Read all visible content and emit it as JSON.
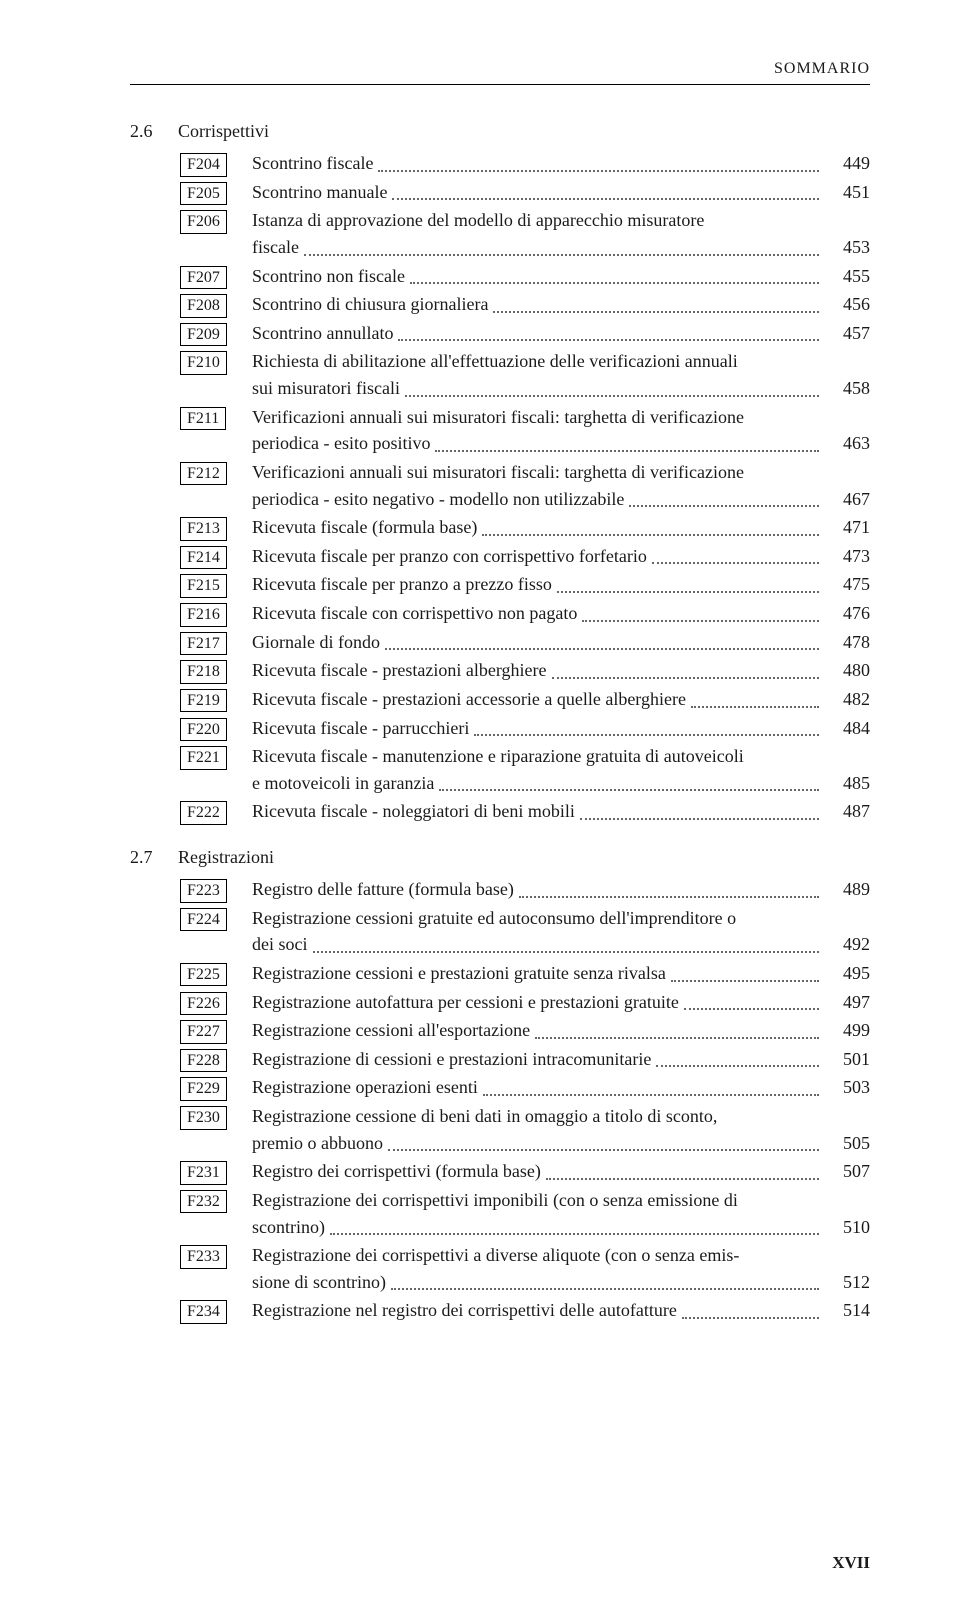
{
  "header": "SOMMARIO",
  "footer": "XVII",
  "sections": [
    {
      "num": "2.6",
      "title": "Corrispettivi",
      "entries": [
        {
          "code": "F204",
          "lines": [
            "Scontrino fiscale"
          ],
          "page": "449"
        },
        {
          "code": "F205",
          "lines": [
            "Scontrino manuale"
          ],
          "page": "451"
        },
        {
          "code": "F206",
          "lines": [
            "Istanza di approvazione del modello di apparecchio misuratore",
            "fiscale"
          ],
          "page": "453"
        },
        {
          "code": "F207",
          "lines": [
            "Scontrino non fiscale"
          ],
          "page": "455"
        },
        {
          "code": "F208",
          "lines": [
            "Scontrino di chiusura giornaliera"
          ],
          "page": "456"
        },
        {
          "code": "F209",
          "lines": [
            "Scontrino annullato"
          ],
          "page": "457"
        },
        {
          "code": "F210",
          "lines": [
            "Richiesta di abilitazione all'effettuazione delle verificazioni annuali",
            "sui misuratori fiscali"
          ],
          "page": "458"
        },
        {
          "code": "F211",
          "lines": [
            "Verificazioni annuali sui misuratori fiscali: targhetta di verificazione",
            "periodica - esito positivo"
          ],
          "page": "463"
        },
        {
          "code": "F212",
          "lines": [
            "Verificazioni annuali sui misuratori fiscali: targhetta di verificazione",
            "periodica - esito negativo - modello non utilizzabile"
          ],
          "page": "467"
        },
        {
          "code": "F213",
          "lines": [
            "Ricevuta fiscale (formula base)"
          ],
          "page": "471"
        },
        {
          "code": "F214",
          "lines": [
            "Ricevuta fiscale per pranzo con corrispettivo forfetario"
          ],
          "page": "473"
        },
        {
          "code": "F215",
          "lines": [
            "Ricevuta fiscale per pranzo a prezzo fisso"
          ],
          "page": "475"
        },
        {
          "code": "F216",
          "lines": [
            "Ricevuta fiscale con corrispettivo non pagato"
          ],
          "page": "476"
        },
        {
          "code": "F217",
          "lines": [
            "Giornale di fondo"
          ],
          "page": "478"
        },
        {
          "code": "F218",
          "lines": [
            "Ricevuta fiscale - prestazioni alberghiere"
          ],
          "page": "480"
        },
        {
          "code": "F219",
          "lines": [
            "Ricevuta fiscale - prestazioni accessorie a quelle alberghiere"
          ],
          "page": "482"
        },
        {
          "code": "F220",
          "lines": [
            "Ricevuta fiscale - parrucchieri"
          ],
          "page": "484"
        },
        {
          "code": "F221",
          "lines": [
            "Ricevuta fiscale - manutenzione e riparazione gratuita di autoveicoli",
            "e motoveicoli in garanzia"
          ],
          "page": "485"
        },
        {
          "code": "F222",
          "lines": [
            "Ricevuta fiscale - noleggiatori di beni mobili"
          ],
          "page": "487"
        }
      ]
    },
    {
      "num": "2.7",
      "title": "Registrazioni",
      "entries": [
        {
          "code": "F223",
          "lines": [
            "Registro delle fatture (formula base)"
          ],
          "page": "489"
        },
        {
          "code": "F224",
          "lines": [
            "Registrazione cessioni gratuite ed autoconsumo dell'imprenditore o",
            "dei soci"
          ],
          "page": "492"
        },
        {
          "code": "F225",
          "lines": [
            "Registrazione cessioni e prestazioni gratuite senza rivalsa"
          ],
          "page": "495"
        },
        {
          "code": "F226",
          "lines": [
            "Registrazione autofattura per cessioni e prestazioni gratuite"
          ],
          "page": "497"
        },
        {
          "code": "F227",
          "lines": [
            "Registrazione cessioni all'esportazione"
          ],
          "page": "499"
        },
        {
          "code": "F228",
          "lines": [
            "Registrazione di cessioni e prestazioni intracomunitarie"
          ],
          "page": "501"
        },
        {
          "code": "F229",
          "lines": [
            "Registrazione operazioni esenti"
          ],
          "page": "503"
        },
        {
          "code": "F230",
          "lines": [
            "Registrazione cessione di beni dati in omaggio a titolo di sconto,",
            "premio o abbuono"
          ],
          "page": "505"
        },
        {
          "code": "F231",
          "lines": [
            "Registro dei corrispettivi (formula base)"
          ],
          "page": "507"
        },
        {
          "code": "F232",
          "lines": [
            "Registrazione dei corrispettivi imponibili (con o senza emissione di",
            "scontrino)"
          ],
          "page": "510"
        },
        {
          "code": "F233",
          "lines": [
            "Registrazione dei corrispettivi a diverse aliquote (con o senza emis-",
            "sione di scontrino)"
          ],
          "page": "512"
        },
        {
          "code": "F234",
          "lines": [
            "Registrazione nel registro dei corrispettivi delle autofatture"
          ],
          "page": "514"
        }
      ]
    }
  ]
}
